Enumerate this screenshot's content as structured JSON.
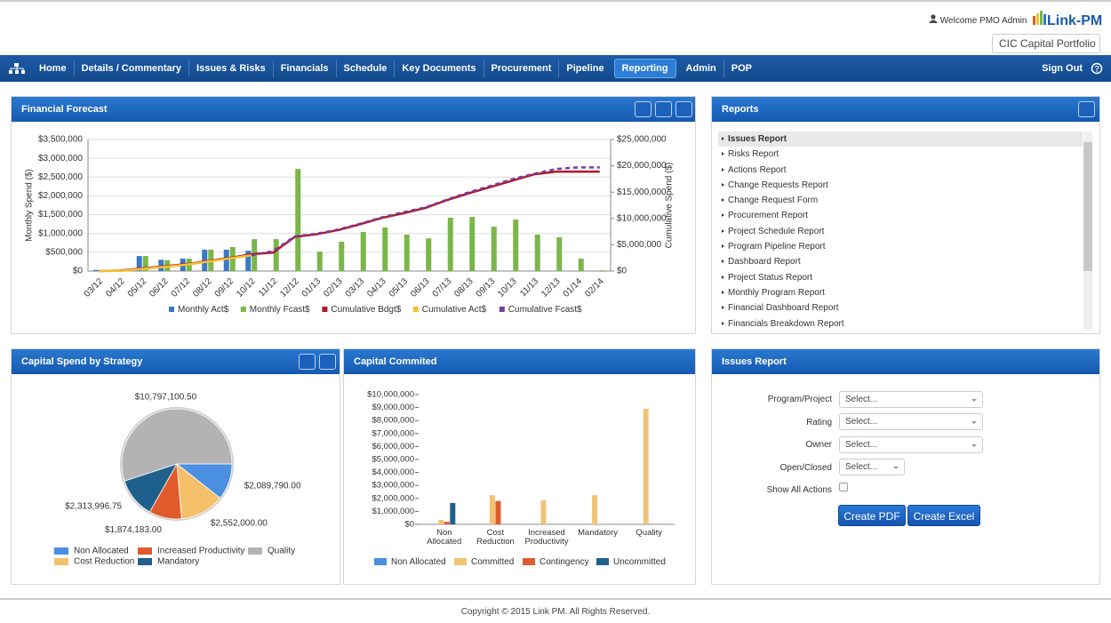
{
  "header": {
    "welcome": "Welcome PMO Admin",
    "logo": "Link-PM",
    "portfolio": "CIC Capital Portfolio"
  },
  "nav": {
    "items": [
      "Home",
      "Details / Commentary",
      "Issues & Risks",
      "Financials",
      "Schedule",
      "Key Documents",
      "Procurement",
      "Pipeline",
      "Reporting",
      "Admin",
      "POP"
    ],
    "sign_out": "Sign Out"
  },
  "chart_data": [
    {
      "type": "combo",
      "title": "Financial Forecast",
      "y_label": "Monthly Spend ($)",
      "y2_label": "Cumulative Spend ($)",
      "categories": [
        "03/12",
        "04/12",
        "05/12",
        "06/12",
        "07/12",
        "08/12",
        "09/12",
        "10/12",
        "11/12",
        "12/12",
        "01/13",
        "02/13",
        "03/13",
        "04/13",
        "05/13",
        "06/13",
        "07/13",
        "08/13",
        "09/13",
        "10/13",
        "11/13",
        "12/13",
        "01/14",
        "02/14"
      ],
      "ylim": [
        0,
        3500000
      ],
      "yticks": [
        {
          "value": 0,
          "label": "$0"
        },
        {
          "value": 500000,
          "label": "$500,000"
        },
        {
          "value": 1000000,
          "label": "$1,000,000"
        },
        {
          "value": 1500000,
          "label": "$1,500,000"
        },
        {
          "value": 2000000,
          "label": "$2,000,000"
        },
        {
          "value": 2500000,
          "label": "$2,500,000"
        },
        {
          "value": 3000000,
          "label": "$3,000,000"
        },
        {
          "value": 3500000,
          "label": "$3,500,000"
        }
      ],
      "y2lim": [
        0,
        25000000
      ],
      "y2ticks": [
        {
          "value": 0,
          "label": "$0"
        },
        {
          "value": 5000000,
          "label": "$5,000,000"
        },
        {
          "value": 10000000,
          "label": "$10,000,000"
        },
        {
          "value": 15000000,
          "label": "$15,000,000"
        },
        {
          "value": 20000000,
          "label": "$20,000,000"
        },
        {
          "value": 25000000,
          "label": "$25,000,000"
        }
      ],
      "grid": true,
      "series": [
        {
          "name": "Monthly Act$",
          "type": "bar",
          "color": "#3a78c3",
          "values": [
            30000,
            0,
            400000,
            300000,
            330000,
            570000,
            570000,
            540000,
            null,
            null,
            null,
            null,
            null,
            null,
            null,
            null,
            null,
            null,
            null,
            null,
            null,
            null,
            null,
            null
          ]
        },
        {
          "name": "Monthly Fcast$",
          "type": "bar",
          "color": "#7ab648",
          "values": [
            0,
            0,
            400000,
            290000,
            330000,
            570000,
            640000,
            850000,
            850000,
            2720000,
            520000,
            780000,
            1040000,
            1160000,
            970000,
            870000,
            1420000,
            1440000,
            1180000,
            1370000,
            970000,
            900000,
            330000,
            20000
          ]
        },
        {
          "name": "Cumulative Bdgt$",
          "type": "line",
          "axis": "y2",
          "color": "#b0182b",
          "values": [
            0,
            100000,
            500000,
            900000,
            1300000,
            1900000,
            2500000,
            3200000,
            3500000,
            6500000,
            7000000,
            7800000,
            8900000,
            10100000,
            11000000,
            12000000,
            13500000,
            14800000,
            16000000,
            17200000,
            18400000,
            18900000,
            18900000,
            18900000
          ]
        },
        {
          "name": "Cumulative Act$",
          "type": "line",
          "axis": "y2",
          "color": "#f2c12e",
          "values": [
            0,
            50000,
            400000,
            800000,
            1200000,
            1800000,
            2400000,
            3000000,
            null,
            null,
            null,
            null,
            null,
            null,
            null,
            null,
            null,
            null,
            null,
            null,
            null,
            null,
            null,
            null
          ]
        },
        {
          "name": "Cumulative Fcast$",
          "type": "line",
          "axis": "y2",
          "style": "dashed",
          "color": "#7a3a9e",
          "values": [
            null,
            null,
            null,
            null,
            null,
            null,
            null,
            3000000,
            3800000,
            6600000,
            7100000,
            7900000,
            9000000,
            10200000,
            11200000,
            12100000,
            13600000,
            15000000,
            16200000,
            17500000,
            18500000,
            19400000,
            19700000,
            19700000
          ]
        }
      ]
    },
    {
      "type": "pie",
      "title": "Capital Spend by Strategy",
      "categories": [
        "Non Allocated",
        "Cost Reduction",
        "Increased Productivity",
        "Mandatory",
        "Quality"
      ],
      "values": [
        2089790,
        2552000,
        1874183,
        2313996.75,
        10797100.5
      ],
      "value_labels": [
        "$2,089,790.00",
        "$2,552,000.00",
        "$1,874,183.00",
        "$2,313,996.75",
        "$10,797,100.50"
      ],
      "colors": [
        "#4a8fe0",
        "#f5c06a",
        "#e05a2b",
        "#1f5f8b",
        "#b3b3b3"
      ]
    },
    {
      "type": "bar",
      "title": "Capital Commited",
      "categories": [
        "Non Allocated",
        "Cost Reduction",
        "Increased Productivity",
        "Mandatory",
        "Quality"
      ],
      "ylim": [
        0,
        10000000
      ],
      "yticks": [
        {
          "value": 0,
          "label": "$0"
        },
        {
          "value": 1000000,
          "label": "$1,000,000"
        },
        {
          "value": 2000000,
          "label": "$2,000,000"
        },
        {
          "value": 3000000,
          "label": "$3,000,000"
        },
        {
          "value": 4000000,
          "label": "$4,000,000"
        },
        {
          "value": 5000000,
          "label": "$5,000,000"
        },
        {
          "value": 6000000,
          "label": "$6,000,000"
        },
        {
          "value": 7000000,
          "label": "$7,000,000"
        },
        {
          "value": 8000000,
          "label": "$8,000,000"
        },
        {
          "value": 9000000,
          "label": "$9,000,000"
        },
        {
          "value": 10000000,
          "label": "$10,000,000"
        }
      ],
      "series": [
        {
          "name": "Non Allocated",
          "color": "#4a8fe0",
          "values": [
            0,
            0,
            0,
            0,
            0
          ]
        },
        {
          "name": "Committed",
          "color": "#f0c374",
          "values": [
            350000,
            2250000,
            1850000,
            2250000,
            8900000
          ]
        },
        {
          "name": "Contingency",
          "color": "#e05a2b",
          "values": [
            200000,
            1800000,
            0,
            0,
            0
          ]
        },
        {
          "name": "Uncommitted",
          "color": "#1f5f8b",
          "values": [
            1650000,
            0,
            0,
            0,
            0
          ]
        }
      ]
    }
  ],
  "reports": {
    "title": "Reports",
    "items": [
      "Issues Report",
      "Risks Report",
      "Actions Report",
      "Change Requests Report",
      "Change Request Form",
      "Procurement Report",
      "Project Schedule Report",
      "Program Pipeline Report",
      "Dashboard Report",
      "Project Status Report",
      "Monthly Program Report",
      "Financial Dashboard Report",
      "Financials Breakdown Report"
    ]
  },
  "issues_report": {
    "title": "Issues Report",
    "fields": [
      {
        "label": "Program/Project",
        "placeholder": "Select..."
      },
      {
        "label": "Rating",
        "placeholder": "Select..."
      },
      {
        "label": "Owner",
        "placeholder": "Select..."
      },
      {
        "label": "Open/Closed",
        "placeholder": "Select..."
      }
    ],
    "show_all_actions": "Show All Actions",
    "buttons": [
      "Create PDF",
      "Create Excel"
    ]
  },
  "footer": "Copyright © 2015 Link PM. All Rights Reserved."
}
